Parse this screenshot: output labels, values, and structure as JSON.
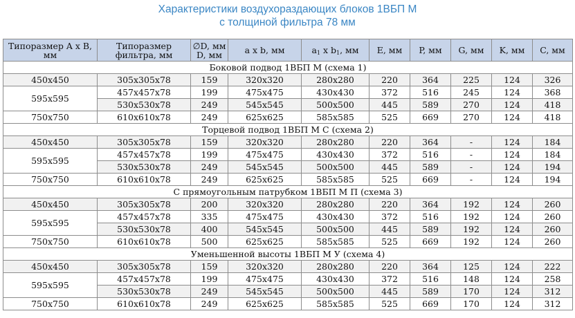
{
  "title": {
    "line1": "Характеристики воздухораздающих блоков 1ВБП М",
    "line2": "с толщиной фильтра 78 мм"
  },
  "colors": {
    "title": "#3a86c4",
    "header_bg": "#c7d4e9",
    "row_even_bg": "#f1f1f1",
    "border": "#8c8c8c"
  },
  "header": {
    "size_l1": "Типоразмер A x B,",
    "size_l2": "мм",
    "filter_l1": "Типоразмер",
    "filter_l2": "фильтра, мм",
    "d_l1": "∅D, мм",
    "d_l2": "D, мм",
    "axb": "a x b, мм",
    "a1b1_a": "a",
    "a1b1_sub1": "1",
    "a1b1_mid": " x b",
    "a1b1_sub2": "1",
    "a1b1_end": ", мм",
    "e": "E, мм",
    "p": "P, мм",
    "g": "G, мм",
    "k": "K, мм",
    "c": "C, мм"
  },
  "sections": [
    {
      "title": "Боковой подвод 1ВБП М (схема 1)",
      "groups": [
        {
          "size": "450x450",
          "rows": [
            [
              "305x305x78",
              "159",
              "320x320",
              "280x280",
              "220",
              "364",
              "225",
              "124",
              "326"
            ]
          ]
        },
        {
          "size": "595x595",
          "rows": [
            [
              "457x457x78",
              "199",
              "475x475",
              "430x430",
              "372",
              "516",
              "245",
              "124",
              "368"
            ],
            [
              "530x530x78",
              "249",
              "545x545",
              "500x500",
              "445",
              "589",
              "270",
              "124",
              "418"
            ]
          ]
        },
        {
          "size": "750x750",
          "rows": [
            [
              "610x610x78",
              "249",
              "625x625",
              "585x585",
              "525",
              "669",
              "270",
              "124",
              "418"
            ]
          ]
        }
      ]
    },
    {
      "title": "Торцевой подвод 1ВБП М С (схема 2)",
      "groups": [
        {
          "size": "450x450",
          "rows": [
            [
              "305x305x78",
              "159",
              "320x320",
              "280x280",
              "220",
              "364",
              "-",
              "124",
              "184"
            ]
          ]
        },
        {
          "size": "595x595",
          "rows": [
            [
              "457x457x78",
              "199",
              "475x475",
              "430x430",
              "372",
              "516",
              "-",
              "124",
              "184"
            ],
            [
              "530x530x78",
              "249",
              "545x545",
              "500x500",
              "445",
              "589",
              "-",
              "124",
              "194"
            ]
          ]
        },
        {
          "size": "750x750",
          "rows": [
            [
              "610x610x78",
              "249",
              "625x625",
              "585x585",
              "525",
              "669",
              "-",
              "124",
              "194"
            ]
          ]
        }
      ]
    },
    {
      "title": "С прямоугольным патрубком 1ВБП М П (схема 3)",
      "groups": [
        {
          "size": "450x450",
          "rows": [
            [
              "305x305x78",
              "200",
              "320x320",
              "280x280",
              "220",
              "364",
              "192",
              "124",
              "260"
            ]
          ]
        },
        {
          "size": "595x595",
          "rows": [
            [
              "457x457x78",
              "335",
              "475x475",
              "430x430",
              "372",
              "516",
              "192",
              "124",
              "260"
            ],
            [
              "530x530x78",
              "400",
              "545x545",
              "500x500",
              "445",
              "589",
              "192",
              "124",
              "260"
            ]
          ]
        },
        {
          "size": "750x750",
          "rows": [
            [
              "610x610x78",
              "500",
              "625x625",
              "585x585",
              "525",
              "669",
              "192",
              "124",
              "260"
            ]
          ]
        }
      ]
    },
    {
      "title": "Уменьшенной высоты 1ВБП М У (схема 4)",
      "groups": [
        {
          "size": "450x450",
          "rows": [
            [
              "305x305x78",
              "159",
              "320x320",
              "280x280",
              "220",
              "364",
              "125",
              "124",
              "222"
            ]
          ]
        },
        {
          "size": "595x595",
          "rows": [
            [
              "457x457x78",
              "199",
              "475x475",
              "430x430",
              "372",
              "516",
              "148",
              "124",
              "258"
            ],
            [
              "530x530x78",
              "249",
              "545x545",
              "500x500",
              "445",
              "589",
              "170",
              "124",
              "312"
            ]
          ]
        },
        {
          "size": "750x750",
          "rows": [
            [
              "610x610x78",
              "249",
              "625x625",
              "585x585",
              "525",
              "669",
              "170",
              "124",
              "312"
            ]
          ]
        }
      ]
    }
  ]
}
